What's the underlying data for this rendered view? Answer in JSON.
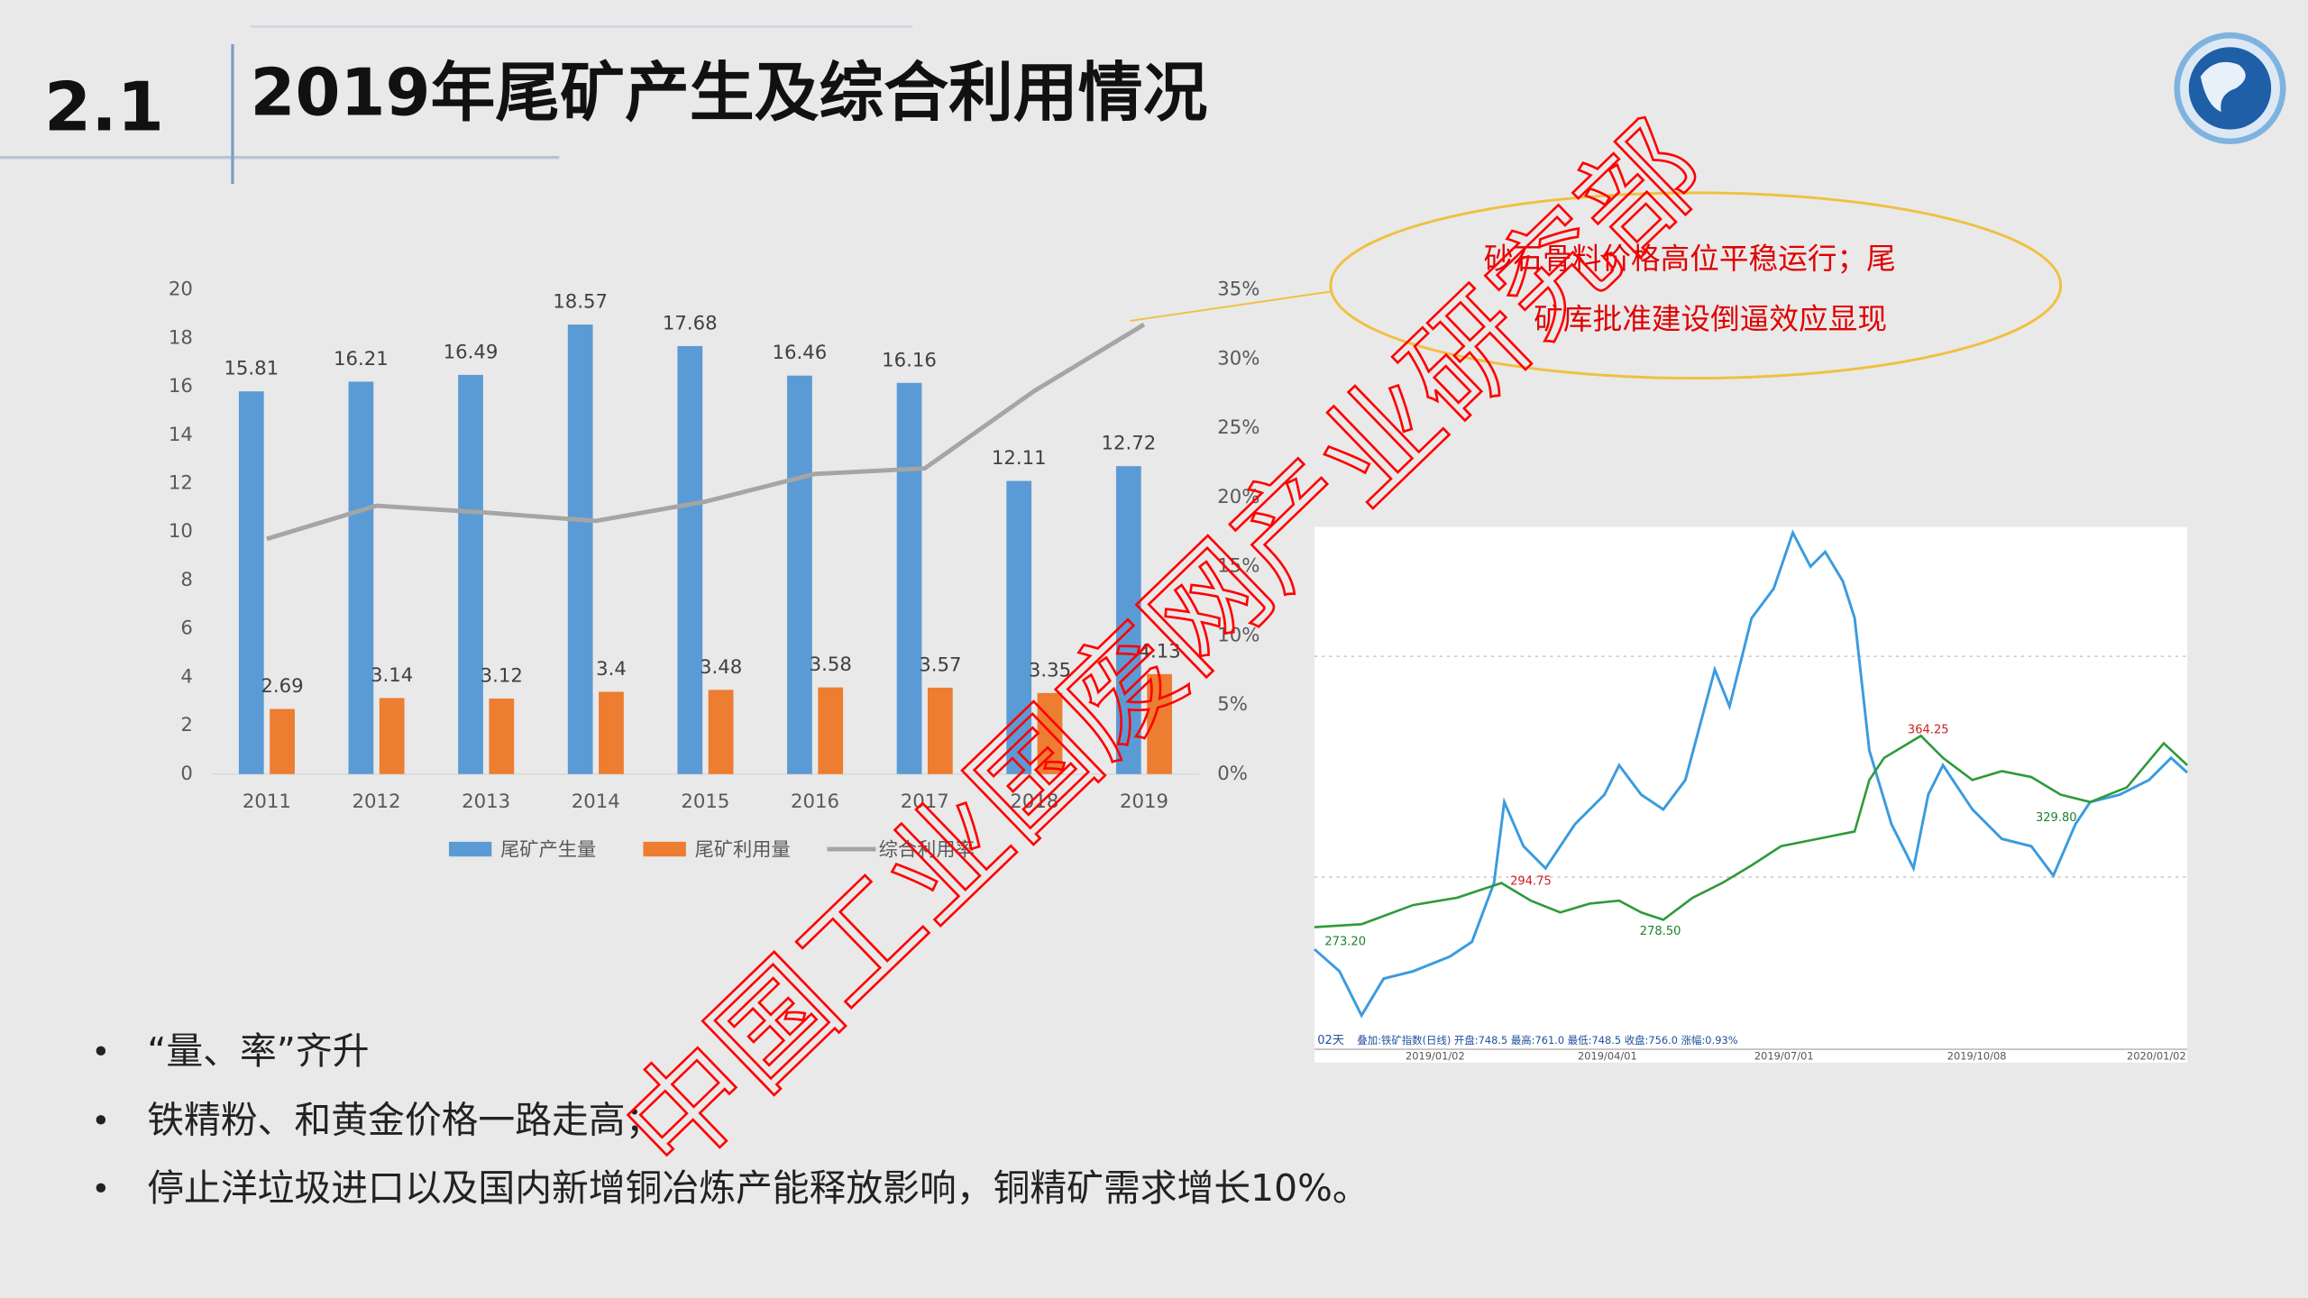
{
  "slide": {
    "section": "2.1",
    "title": "2019年尾矿产生及综合利用情况",
    "bullets": [
      "“量、率”齐升",
      "铁精粉、和黄金价格一路走高；",
      "停止洋垃圾进口以及国内新增铜冶炼产能释放影响，铜精矿需求增长10%。"
    ],
    "callout": [
      "砂石骨料价格高位平稳运行；尾",
      "矿库批准建设倒逼效应显现"
    ],
    "watermark": "中国工业国废网产业研究部"
  },
  "chart_data": {
    "type": "bar",
    "categories": [
      "2011",
      "2012",
      "2013",
      "2014",
      "2015",
      "2016",
      "2017",
      "2018",
      "2019"
    ],
    "series": [
      {
        "name": "尾矿产生量",
        "color": "#5b9bd5",
        "values": [
          15.81,
          16.21,
          16.49,
          18.57,
          17.68,
          16.46,
          16.16,
          12.11,
          12.72
        ]
      },
      {
        "name": "尾矿利用量",
        "color": "#ed7d31",
        "values": [
          2.69,
          3.14,
          3.12,
          3.4,
          3.48,
          3.58,
          3.57,
          3.35,
          4.13
        ]
      },
      {
        "name": "综合利用率",
        "color": "#a5a5a5",
        "type": "line",
        "axis": "y2",
        "values": [
          17.0,
          19.4,
          18.9,
          18.3,
          19.7,
          21.7,
          22.1,
          27.7,
          32.5
        ]
      }
    ],
    "ylim": [
      0,
      20
    ],
    "yticks": [
      0,
      2,
      4,
      6,
      8,
      10,
      12,
      14,
      16,
      18,
      20
    ],
    "y2lim": [
      0,
      35
    ],
    "y2ticks": [
      {
        "value": 0,
        "label": "0%"
      },
      {
        "value": 5,
        "label": "5%"
      },
      {
        "value": 10,
        "label": "10%"
      },
      {
        "value": 15,
        "label": "15%"
      },
      {
        "value": 20,
        "label": "20%"
      },
      {
        "value": 25,
        "label": "25%"
      },
      {
        "value": 30,
        "label": "30%"
      },
      {
        "value": 35,
        "label": "35%"
      }
    ],
    "grid": false,
    "legend": "bottom"
  },
  "stock_chart": {
    "price_labels": [
      "364.25",
      "329.80",
      "294.75",
      "278.50",
      "273.20"
    ],
    "dates": [
      "2019/01/02",
      "2019/04/01",
      "2019/07/01",
      "2019/10/08",
      "2020/01/02"
    ],
    "days": "02天",
    "info": "叠加:铁矿指数(日线)   开盘:748.5   最高:761.0   最低:748.5   收盘:756.0   涨幅:0.93%"
  }
}
